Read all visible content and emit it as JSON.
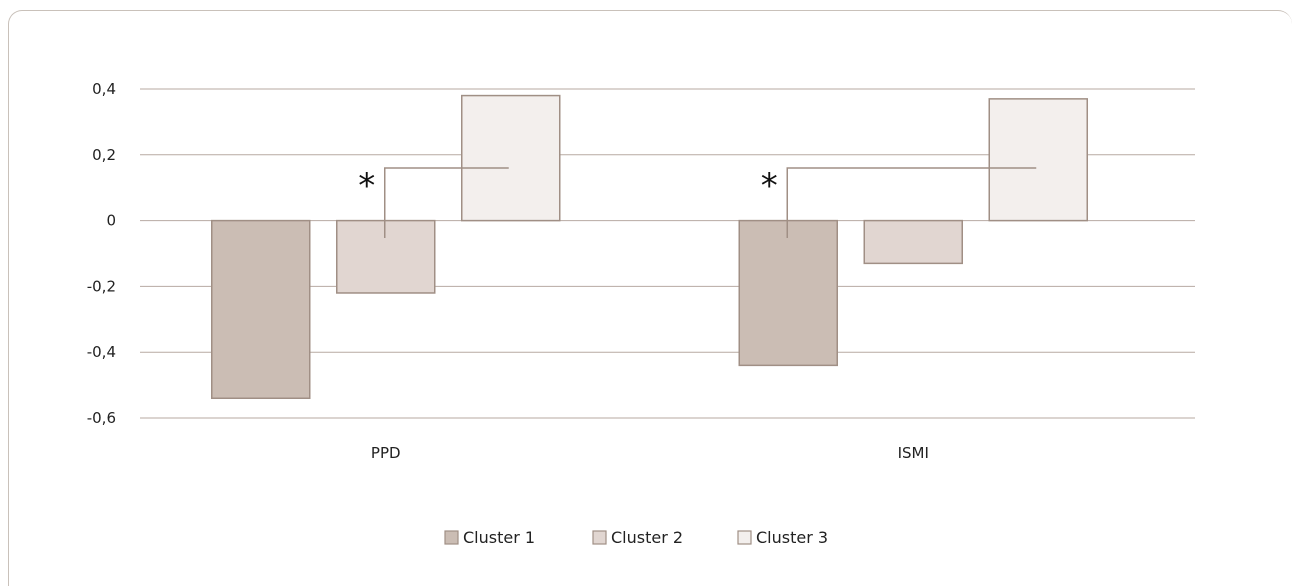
{
  "chart_data": {
    "type": "bar",
    "categories": [
      "PPD",
      "ISMI"
    ],
    "series": [
      {
        "name": "Cluster 1",
        "values": [
          -0.54,
          -0.44
        ],
        "color": "#cbbdb4"
      },
      {
        "name": "Cluster 2",
        "values": [
          -0.22,
          -0.13
        ],
        "color": "#e1d6d1"
      },
      {
        "name": "Cluster 3",
        "values": [
          0.38,
          0.37
        ],
        "color": "#f3efed"
      }
    ],
    "y_ticks": [
      "0,4",
      "0,2",
      "0",
      "-0,2",
      "-0,4",
      "-0,6"
    ],
    "y_tick_values": [
      0.4,
      0.2,
      0,
      -0.2,
      -0.4,
      -0.6
    ],
    "ylim": [
      -0.6,
      0.4
    ],
    "grid": true,
    "legend_position": "bottom-center",
    "annotations": [
      {
        "text": "*",
        "category": "PPD",
        "from_series": "Cluster 2",
        "to_series": "Cluster 3"
      },
      {
        "text": "*",
        "category": "ISMI",
        "from_series": "Cluster 1",
        "to_series": "Cluster 3"
      }
    ],
    "colors": {
      "bar_border": "#a08f85",
      "grid": "#b7aaa2",
      "bracket": "#a08f85",
      "frame": "#c9c1ba"
    }
  }
}
